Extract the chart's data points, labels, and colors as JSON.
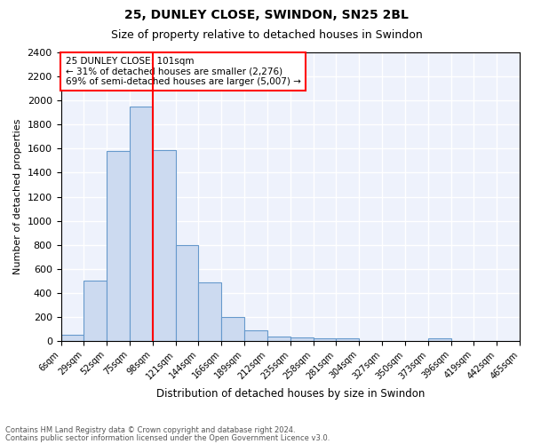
{
  "title1": "25, DUNLEY CLOSE, SWINDON, SN25 2BL",
  "title2": "Size of property relative to detached houses in Swindon",
  "xlabel": "Distribution of detached houses by size in Swindon",
  "ylabel": "Number of detached properties",
  "bin_labels": [
    "6sqm",
    "29sqm",
    "52sqm",
    "75sqm",
    "98sqm",
    "121sqm",
    "144sqm",
    "166sqm",
    "189sqm",
    "212sqm",
    "235sqm",
    "258sqm",
    "281sqm",
    "304sqm",
    "327sqm",
    "350sqm",
    "373sqm",
    "396sqm",
    "419sqm",
    "442sqm",
    "465sqm"
  ],
  "bar_heights": [
    50,
    500,
    1580,
    1950,
    1590,
    800,
    490,
    200,
    90,
    35,
    30,
    20,
    20,
    0,
    0,
    0,
    20,
    0,
    0,
    0
  ],
  "bar_color": "#ccdaf0",
  "bar_edge_color": "#6699cc",
  "ylim": [
    0,
    2400
  ],
  "yticks": [
    0,
    200,
    400,
    600,
    800,
    1000,
    1200,
    1400,
    1600,
    1800,
    2000,
    2200,
    2400
  ],
  "property_line_x": 4,
  "property_line_label": "25 DUNLEY CLOSE: 101sqm",
  "annotation_line1": "← 31% of detached houses are smaller (2,276)",
  "annotation_line2": "69% of semi-detached houses are larger (5,007) →",
  "footnote1": "Contains HM Land Registry data © Crown copyright and database right 2024.",
  "footnote2": "Contains public sector information licensed under the Open Government Licence v3.0.",
  "background_color": "#eef2fc"
}
